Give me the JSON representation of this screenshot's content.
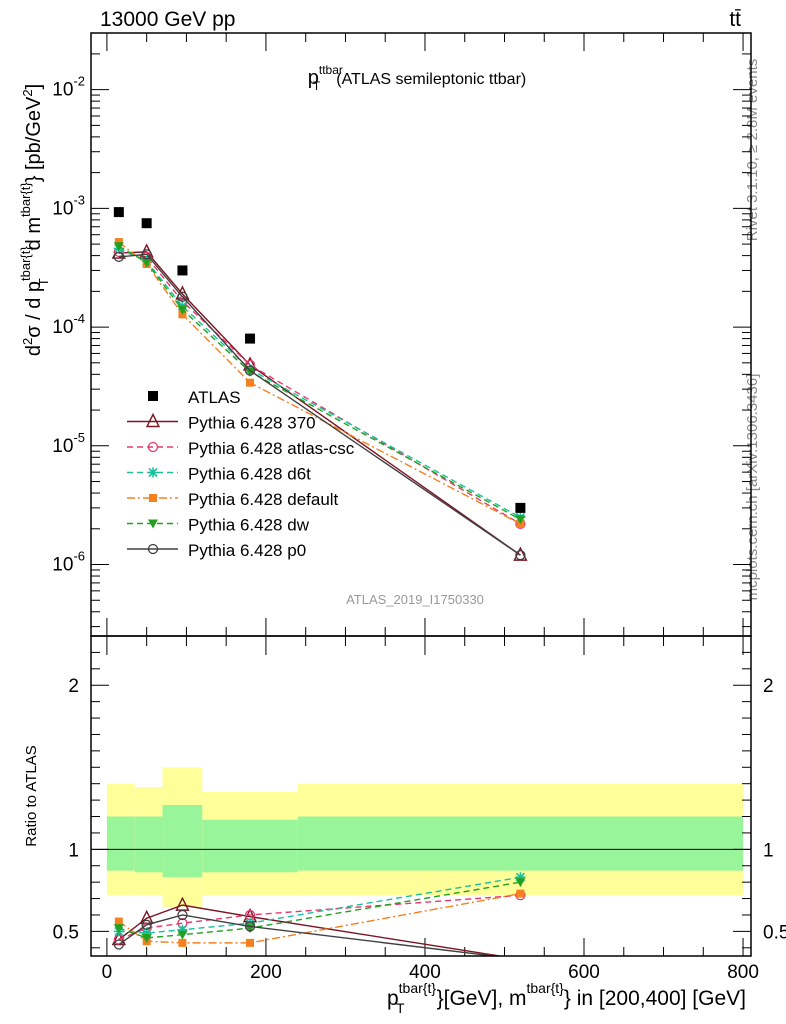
{
  "header": {
    "energy_label": "13000 GeV pp",
    "process_label": "tt̄"
  },
  "side_labels": {
    "rivet": "Rivet 3.1.10, ≥ 2.8M events",
    "mcplots": "mcplots.cern.ch [arXiv:1306.3436]"
  },
  "chart_data": [
    {
      "type": "scatter",
      "panel": "main",
      "title": "p_T^ttbar (ATLAS semileptonic ttbar)",
      "analysis_label": "ATLAS_2019_I1750330",
      "ylabel": "d²σ / d p_T^{tbar{t}} d m^{tbar{t}} [pb/GeV²]",
      "ylog": true,
      "ylim": [
        2.5e-07,
        0.03
      ],
      "xlim": [
        -20,
        810
      ],
      "y_tick_labels": [
        "10^-6",
        "10^-5",
        "10^-4",
        "10^-3",
        "10^-2"
      ],
      "legend_position": "lower-left",
      "x": [
        15,
        50,
        95,
        180,
        520
      ],
      "data": {
        "name": "ATLAS",
        "y": [
          0.00093,
          0.00075,
          0.0003,
          8e-05,
          3e-06
        ],
        "color": "#000000"
      },
      "series": [
        {
          "name": "Pythia 6.428 370",
          "y": [
            0.00042,
            0.00043,
            0.00019,
            4.8e-05,
            1.2e-06
          ],
          "color": "#7b1423",
          "dash": "solid",
          "marker": "triangle-open"
        },
        {
          "name": "Pythia 6.428 atlas-csc",
          "y": [
            0.00043,
            0.00039,
            0.000165,
            4.8e-05,
            2.2e-06
          ],
          "color": "#e8386c",
          "dash": "dashed",
          "marker": "circle-open"
        },
        {
          "name": "Pythia 6.428 d6t",
          "y": [
            0.00046,
            0.00036,
            0.00015,
            4.4e-05,
            2.5e-06
          ],
          "color": "#1bbf9c",
          "dash": "dashed",
          "marker": "star"
        },
        {
          "name": "Pythia 6.428 default",
          "y": [
            0.00052,
            0.00034,
            0.000128,
            3.4e-05,
            2.2e-06
          ],
          "color": "#f48020",
          "dash": "dashdot",
          "marker": "square"
        },
        {
          "name": "Pythia 6.428 dw",
          "y": [
            0.00048,
            0.00035,
            0.00014,
            4.2e-05,
            2.4e-06
          ],
          "color": "#22a020",
          "dash": "dashed",
          "marker": "triangle-down"
        },
        {
          "name": "Pythia 6.428 p0",
          "y": [
            0.00039,
            0.00041,
            0.00018,
            4.3e-05,
            1.2e-06
          ],
          "color": "#404040",
          "dash": "solid",
          "marker": "circle-open"
        }
      ]
    },
    {
      "type": "line",
      "panel": "ratio",
      "ylabel": "Ratio to ATLAS",
      "xlabel": "p_T^{tbar{t}} [GeV], m^{tbar{t}} in [200,400] [GeV]",
      "ylim": [
        0.35,
        2.3
      ],
      "xlim": [
        -20,
        810
      ],
      "x_ticks": [
        0,
        200,
        400,
        600,
        800
      ],
      "y_ticks": [
        0.5,
        1,
        2
      ],
      "bins": [
        {
          "lo": 0,
          "hi": 35,
          "band_inner": [
            0.87,
            1.2
          ],
          "band_outer": [
            0.72,
            1.4
          ]
        },
        {
          "lo": 35,
          "hi": 70,
          "band_inner": [
            0.86,
            1.2
          ],
          "band_outer": [
            0.72,
            1.38
          ]
        },
        {
          "lo": 70,
          "hi": 120,
          "band_inner": [
            0.83,
            1.27
          ],
          "band_outer": [
            0.65,
            1.5
          ]
        },
        {
          "lo": 120,
          "hi": 240,
          "band_inner": [
            0.86,
            1.18
          ],
          "band_outer": [
            0.72,
            1.35
          ]
        },
        {
          "lo": 240,
          "hi": 800,
          "band_inner": [
            0.87,
            1.2
          ],
          "band_outer": [
            0.72,
            1.4
          ]
        }
      ],
      "x": [
        15,
        50,
        95,
        180,
        520
      ],
      "series": [
        {
          "name": "Pythia 6.428 370",
          "y": [
            0.45,
            0.58,
            0.66,
            0.59,
            0.33
          ]
        },
        {
          "name": "Pythia 6.428 atlas-csc",
          "y": [
            0.45,
            0.52,
            0.55,
            0.6,
            0.72
          ]
        },
        {
          "name": "Pythia 6.428 d6t",
          "y": [
            0.5,
            0.49,
            0.51,
            0.55,
            0.83
          ]
        },
        {
          "name": "Pythia 6.428 default",
          "y": [
            0.56,
            0.44,
            0.43,
            0.43,
            0.73
          ]
        },
        {
          "name": "Pythia 6.428 dw",
          "y": [
            0.52,
            0.46,
            0.48,
            0.52,
            0.8
          ]
        },
        {
          "name": "Pythia 6.428 p0",
          "y": [
            0.42,
            0.54,
            0.6,
            0.53,
            0.33
          ]
        }
      ]
    }
  ]
}
